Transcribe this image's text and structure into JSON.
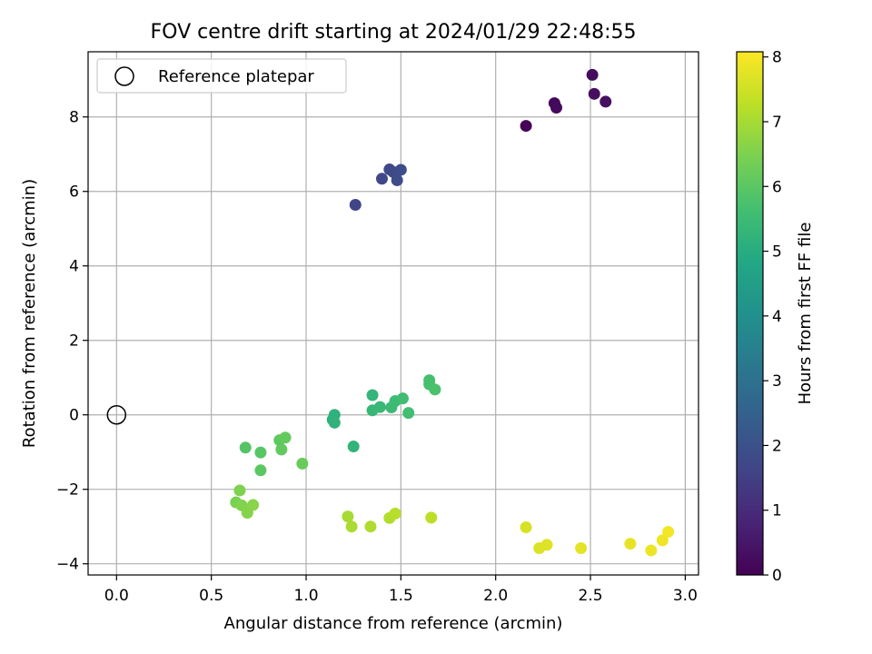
{
  "chart_data": {
    "type": "scatter",
    "title": "FOV centre drift starting at 2024/01/29 22:48:55",
    "xlabel": "Angular distance from reference (arcmin)",
    "ylabel": "Rotation from reference (arcmin)",
    "xlim": [
      -0.15,
      3.07
    ],
    "ylim": [
      -4.3,
      9.75
    ],
    "xticks": [
      0.0,
      0.5,
      1.0,
      1.5,
      2.0,
      2.5,
      3.0
    ],
    "xtick_labels": [
      "0.0",
      "0.5",
      "1.0",
      "1.5",
      "2.0",
      "2.5",
      "3.0"
    ],
    "yticks": [
      -4,
      -2,
      0,
      2,
      4,
      6,
      8
    ],
    "ytick_labels": [
      "−4",
      "−2",
      "0",
      "2",
      "4",
      "6",
      "8"
    ],
    "grid": true,
    "legend": {
      "placement": "upper-left",
      "entries": [
        {
          "label": "Reference platepar"
        }
      ]
    },
    "reference_point": {
      "x": 0.0,
      "y": 0.0
    },
    "colorbar": {
      "label": "Hours from first FF file",
      "colormap": "viridis",
      "range": [
        0,
        8.08
      ],
      "ticks": [
        0,
        1,
        2,
        3,
        4,
        5,
        6,
        7,
        8
      ],
      "tick_labels": [
        "0",
        "1",
        "2",
        "3",
        "4",
        "5",
        "6",
        "7",
        "8"
      ]
    },
    "points": [
      {
        "x": 2.16,
        "y": 7.76,
        "c": 0.05
      },
      {
        "x": 2.31,
        "y": 8.37,
        "c": 0.15
      },
      {
        "x": 2.32,
        "y": 8.25,
        "c": 0.2
      },
      {
        "x": 2.51,
        "y": 9.13,
        "c": 0.25
      },
      {
        "x": 2.52,
        "y": 8.62,
        "c": 0.3
      },
      {
        "x": 2.58,
        "y": 8.41,
        "c": 0.35
      },
      {
        "x": 1.26,
        "y": 5.64,
        "c": 1.65
      },
      {
        "x": 1.4,
        "y": 6.34,
        "c": 1.7
      },
      {
        "x": 1.44,
        "y": 6.59,
        "c": 1.75
      },
      {
        "x": 1.46,
        "y": 6.52,
        "c": 1.8
      },
      {
        "x": 1.48,
        "y": 6.3,
        "c": 1.85
      },
      {
        "x": 1.5,
        "y": 6.58,
        "c": 1.9
      },
      {
        "x": 1.14,
        "y": -0.13,
        "c": 5.1
      },
      {
        "x": 1.15,
        "y": 0.0,
        "c": 5.15
      },
      {
        "x": 1.15,
        "y": -0.21,
        "c": 5.2
      },
      {
        "x": 1.25,
        "y": -0.85,
        "c": 5.25
      },
      {
        "x": 1.35,
        "y": 0.53,
        "c": 5.3
      },
      {
        "x": 1.35,
        "y": 0.12,
        "c": 5.35
      },
      {
        "x": 1.39,
        "y": 0.21,
        "c": 5.4
      },
      {
        "x": 1.45,
        "y": 0.2,
        "c": 5.45
      },
      {
        "x": 1.47,
        "y": 0.37,
        "c": 5.5
      },
      {
        "x": 1.51,
        "y": 0.44,
        "c": 5.55
      },
      {
        "x": 1.54,
        "y": 0.05,
        "c": 5.6
      },
      {
        "x": 1.65,
        "y": 0.93,
        "c": 5.65
      },
      {
        "x": 1.65,
        "y": 0.82,
        "c": 5.7
      },
      {
        "x": 1.68,
        "y": 0.68,
        "c": 5.75
      },
      {
        "x": 0.68,
        "y": -0.88,
        "c": 5.9
      },
      {
        "x": 0.76,
        "y": -1.01,
        "c": 5.95
      },
      {
        "x": 0.76,
        "y": -1.49,
        "c": 6.0
      },
      {
        "x": 0.86,
        "y": -0.68,
        "c": 6.05
      },
      {
        "x": 0.87,
        "y": -0.93,
        "c": 6.1
      },
      {
        "x": 0.89,
        "y": -0.61,
        "c": 6.15
      },
      {
        "x": 0.98,
        "y": -1.31,
        "c": 6.2
      },
      {
        "x": 0.63,
        "y": -2.35,
        "c": 6.45
      },
      {
        "x": 0.65,
        "y": -2.03,
        "c": 6.5
      },
      {
        "x": 0.66,
        "y": -2.43,
        "c": 6.55
      },
      {
        "x": 0.69,
        "y": -2.63,
        "c": 6.6
      },
      {
        "x": 0.72,
        "y": -2.42,
        "c": 6.65
      },
      {
        "x": 1.22,
        "y": -2.73,
        "c": 7.0
      },
      {
        "x": 1.24,
        "y": -3.0,
        "c": 7.05
      },
      {
        "x": 1.34,
        "y": -3.0,
        "c": 7.1
      },
      {
        "x": 1.44,
        "y": -2.77,
        "c": 7.15
      },
      {
        "x": 1.47,
        "y": -2.65,
        "c": 7.2
      },
      {
        "x": 1.66,
        "y": -2.76,
        "c": 7.25
      },
      {
        "x": 2.16,
        "y": -3.02,
        "c": 7.6
      },
      {
        "x": 2.23,
        "y": -3.58,
        "c": 7.65
      },
      {
        "x": 2.27,
        "y": -3.49,
        "c": 7.7
      },
      {
        "x": 2.45,
        "y": -3.58,
        "c": 7.75
      },
      {
        "x": 2.71,
        "y": -3.46,
        "c": 7.8
      },
      {
        "x": 2.82,
        "y": -3.64,
        "c": 7.85
      },
      {
        "x": 2.88,
        "y": -3.37,
        "c": 7.9
      },
      {
        "x": 2.91,
        "y": -3.14,
        "c": 7.95
      }
    ]
  }
}
